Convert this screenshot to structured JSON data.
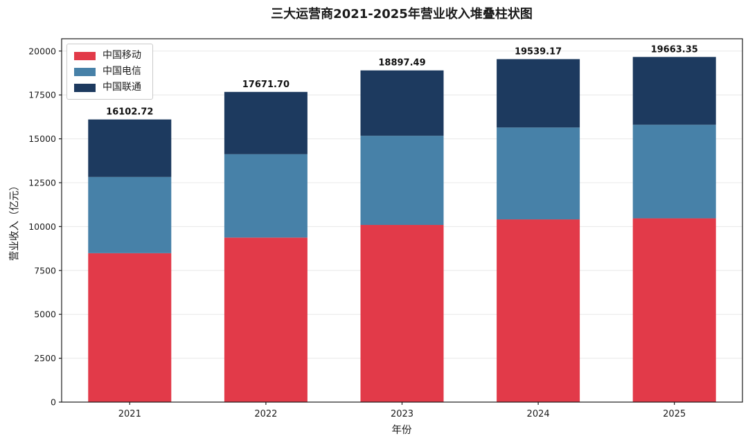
{
  "figure": {
    "background": "#ffffff"
  },
  "chart_data": {
    "type": "bar",
    "stacked": true,
    "title": "三大运营商2021-2025年营业收入堆叠柱状图",
    "xlabel": "年份",
    "ylabel": "营业收入（亿元）",
    "categories": [
      "2021",
      "2022",
      "2023",
      "2024",
      "2025"
    ],
    "series": [
      {
        "name": "中国移动",
        "color": "#e23a49",
        "values": [
          8482.58,
          9372.59,
          10093.09,
          10407.59,
          10470.0
        ]
      },
      {
        "name": "中国电信",
        "color": "#4781a8",
        "values": [
          4341.6,
          4749.67,
          5078.43,
          5235.85,
          5330.0
        ]
      },
      {
        "name": "中国联通",
        "color": "#1d3a5f",
        "values": [
          3278.54,
          3549.44,
          3725.97,
          3895.73,
          3863.35
        ]
      }
    ],
    "totals": [
      "16102.72",
      "17671.70",
      "18897.49",
      "19539.17",
      "19663.35"
    ],
    "yticks": [
      0,
      2500,
      5000,
      7500,
      10000,
      12500,
      15000,
      17500,
      20000
    ],
    "ylim": [
      0,
      20700
    ],
    "grid": "horizontal",
    "grid_color": "#e8e8e8",
    "legend_position": "upper-left",
    "axis_color": "#1a1a1a"
  }
}
